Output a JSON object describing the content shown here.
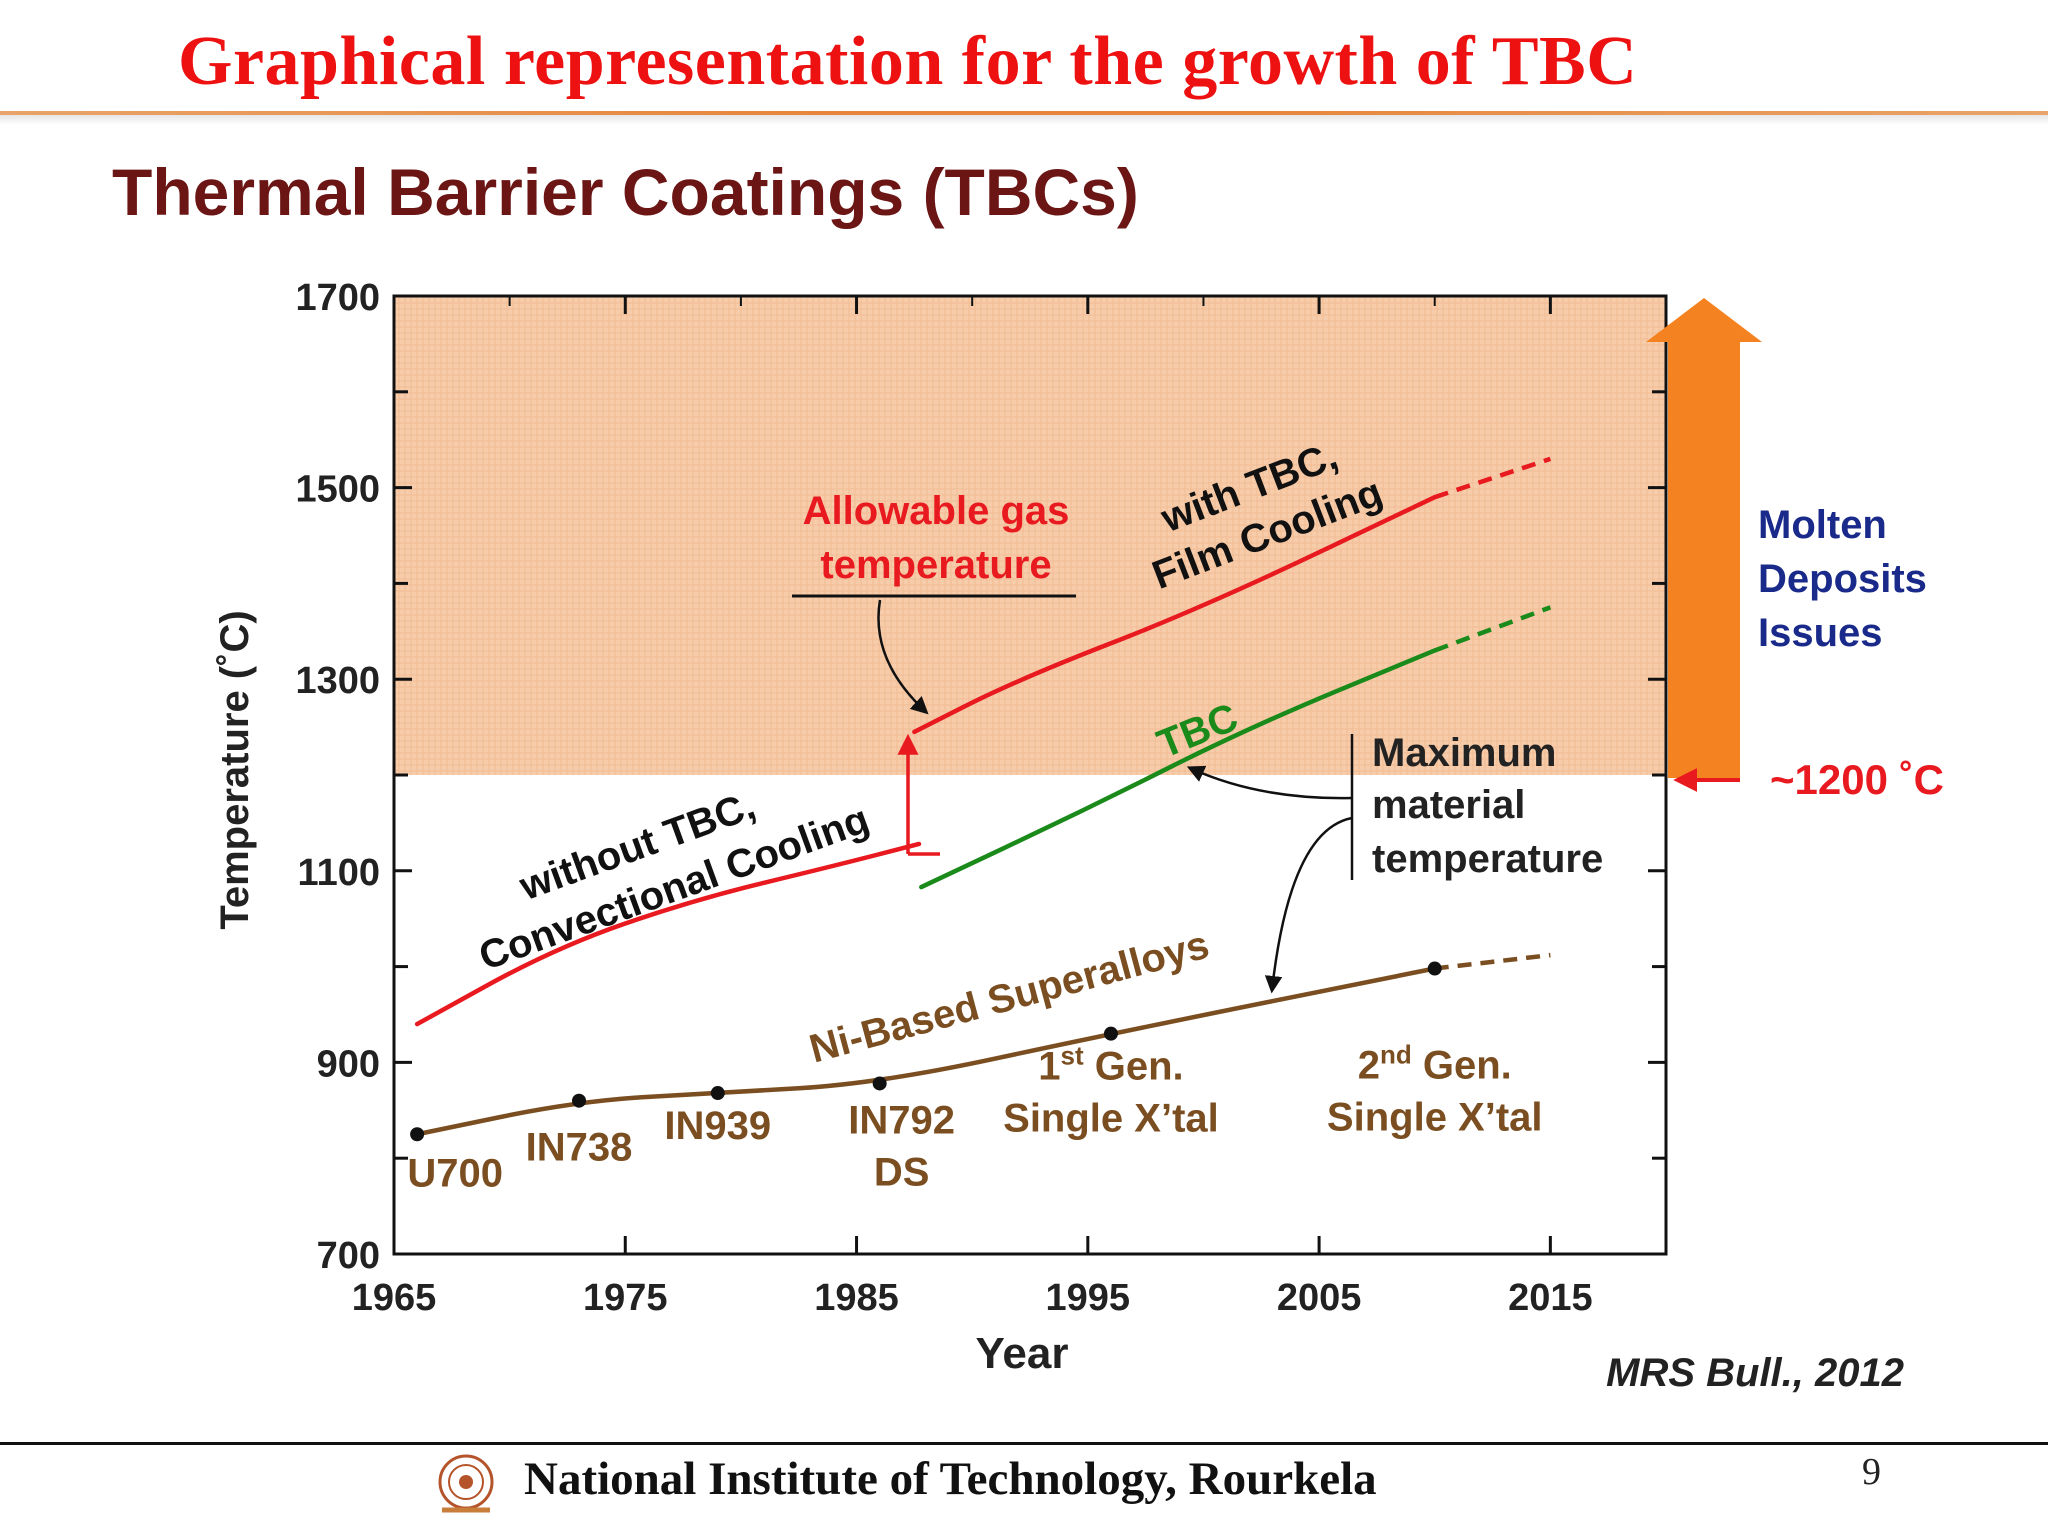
{
  "slide": {
    "title": "Graphical representation for the growth of TBC",
    "footer": "National Institute of Technology, Rourkela",
    "page_number": "9"
  },
  "chart_data": {
    "type": "line",
    "title": "Thermal Barrier Coatings (TBCs)",
    "xlabel": "Year",
    "ylabel": "Temperature (˚C)",
    "xlim": [
      1965,
      2020
    ],
    "ylim": [
      700,
      1700
    ],
    "xticks": [
      1965,
      1975,
      1985,
      1995,
      2005,
      2015
    ],
    "yticks": [
      700,
      900,
      1100,
      1300,
      1500,
      1700
    ],
    "source": "MRS Bull., 2012",
    "shaded_region": {
      "y_from": 1200,
      "y_to": 1700,
      "color": "#f6ccaa"
    },
    "series": [
      {
        "key": "without_tbc",
        "color": "#e8191f",
        "points": [
          [
            1966,
            940
          ],
          [
            1972,
            1020
          ],
          [
            1978,
            1070
          ],
          [
            1984,
            1105
          ],
          [
            1987.7,
            1128
          ]
        ]
      },
      {
        "key": "with_tbc",
        "color": "#e8191f",
        "points": [
          [
            1987.5,
            1245
          ],
          [
            1992,
            1300
          ],
          [
            2000,
            1375
          ],
          [
            2010,
            1490
          ]
        ],
        "dashed_points": [
          [
            2010,
            1490
          ],
          [
            2015,
            1530
          ]
        ]
      },
      {
        "key": "tbc",
        "color": "#1a8a1a",
        "points": [
          [
            1987.8,
            1083
          ],
          [
            1995,
            1165
          ],
          [
            2002,
            1250
          ],
          [
            2010,
            1330
          ]
        ],
        "dashed_points": [
          [
            2010,
            1330
          ],
          [
            2015,
            1375
          ]
        ]
      },
      {
        "key": "superalloys",
        "color": "#7a4e20",
        "points": [
          [
            1966,
            825
          ],
          [
            1973,
            860
          ],
          [
            1979,
            868
          ],
          [
            1986,
            878
          ],
          [
            1996,
            930
          ],
          [
            2010,
            998
          ]
        ],
        "dashed_points": [
          [
            2010,
            998
          ],
          [
            2015,
            1012
          ]
        ]
      }
    ],
    "alloy_points": [
      {
        "label": "U700",
        "x": 1966,
        "y": 825
      },
      {
        "label": "IN738",
        "x": 1973,
        "y": 860
      },
      {
        "label": "IN939",
        "x": 1979,
        "y": 868
      },
      {
        "label": "IN792",
        "sublabel": "DS",
        "x": 1986,
        "y": 878
      },
      {
        "label": "1",
        "sup": "st",
        "label_rest": " Gen.",
        "sublabel": "Single X’tal",
        "x": 1996,
        "y": 930
      },
      {
        "label": "2",
        "sup": "nd",
        "label_rest": " Gen.",
        "sublabel": "Single X’tal",
        "x": 2010,
        "y": 998
      }
    ],
    "annotations": {
      "allowable_gas": [
        "Allowable gas",
        "temperature"
      ],
      "with_tbc": [
        "with TBC,",
        "Film Cooling"
      ],
      "without_tbc": [
        "without TBC,",
        "Convectional Cooling"
      ],
      "tbc": "TBC",
      "max_material": [
        "Maximum",
        "material",
        "temperature"
      ],
      "superalloys": "Ni-Based Superalloys",
      "molten": [
        "Molten",
        "Deposits",
        "Issues"
      ],
      "threshold": "~1200 ˚C"
    },
    "colors": {
      "red": "#e8191f",
      "green": "#1a8a1a",
      "brown": "#7a4e20",
      "title_dark_red": "#6b1515",
      "blue": "#1a2a8a",
      "orange_arrow": "#f58220"
    }
  }
}
